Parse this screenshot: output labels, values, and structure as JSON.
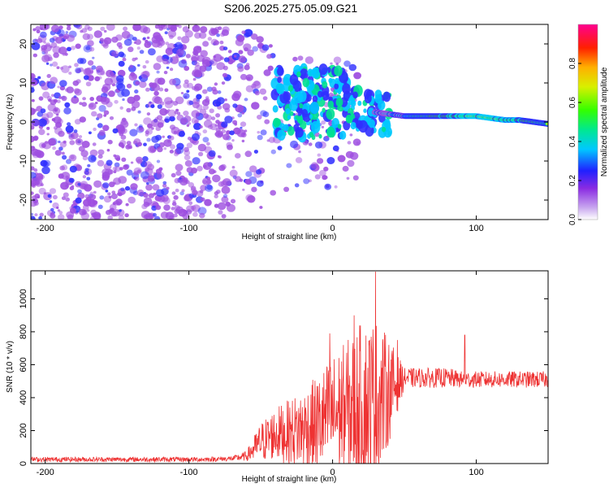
{
  "title": "S206.2025.275.05.09.G21",
  "chart_data": [
    {
      "type": "heatmap",
      "xlabel": "Height of straight line (km)",
      "ylabel": "Frequency (Hz)",
      "xlim": [
        -210,
        150
      ],
      "ylim": [
        -25,
        25
      ],
      "xticks": [
        -200,
        -100,
        0,
        100
      ],
      "xtick_labels": [
        "-200",
        "-100",
        "0",
        "100"
      ],
      "yticks": [
        -20,
        -10,
        0,
        10,
        20
      ],
      "ytick_labels": [
        "-20",
        "-10",
        "0",
        "10",
        "20"
      ],
      "ridge_x": [
        0,
        20,
        30,
        40,
        50,
        60,
        70,
        80,
        90,
        100,
        110,
        120,
        130,
        140,
        150
      ],
      "ridge_y": [
        5,
        3,
        2.5,
        2,
        1.5,
        1.5,
        1.5,
        1.5,
        1.5,
        1.5,
        1,
        0.5,
        0.5,
        0,
        -0.5
      ],
      "colorbar": {
        "label": "Normalized spectral amplitude",
        "range": [
          0,
          1
        ],
        "ticks": [
          0,
          0.2,
          0.4,
          0.6,
          0.8
        ],
        "tick_labels": [
          "0.0",
          "0.2",
          "0.4",
          "0.6",
          "0.8"
        ],
        "colors": [
          "#ffffff",
          "#9e4fe0",
          "#3030ff",
          "#00c8ff",
          "#00e090",
          "#33ff00",
          "#c8f000",
          "#ffd000",
          "#ff6000",
          "#ff0040",
          "#ff0080"
        ]
      }
    },
    {
      "type": "line",
      "xlabel": "Height of straight line (km)",
      "ylabel": "SNR (10 * v/v)",
      "xlim": [
        -210,
        150
      ],
      "ylim": [
        0,
        1170
      ],
      "xticks": [
        -200,
        -100,
        0,
        100
      ],
      "xtick_labels": [
        "-200",
        "-100",
        "0",
        "100"
      ],
      "yticks": [
        0,
        200,
        400,
        600,
        800,
        1000
      ],
      "ytick_labels": [
        "0",
        "200",
        "400",
        "600",
        "800",
        "1000"
      ],
      "series": [
        {
          "name": "SNR",
          "color": "#ee3333",
          "x": [
            -210,
            -180,
            -150,
            -120,
            -90,
            -70,
            -60,
            -50,
            -40,
            -30,
            -20,
            -10,
            0,
            10,
            20,
            30,
            40,
            50,
            60,
            70,
            80,
            90,
            100,
            110,
            120,
            130,
            140,
            150
          ],
          "y_base": [
            25,
            25,
            25,
            25,
            25,
            30,
            45,
            130,
            180,
            190,
            210,
            240,
            300,
            330,
            360,
            370,
            450,
            520,
            520,
            520,
            520,
            510,
            510,
            510,
            510,
            510,
            510,
            510
          ],
          "y_amp": [
            15,
            15,
            15,
            15,
            15,
            15,
            30,
            120,
            160,
            200,
            250,
            300,
            360,
            420,
            500,
            520,
            300,
            60,
            60,
            60,
            60,
            50,
            50,
            50,
            50,
            50,
            50,
            50
          ]
        }
      ],
      "peaks": [
        {
          "x": 30,
          "y": 1165
        },
        {
          "x": -2,
          "y": 790
        },
        {
          "x": 15,
          "y": 900
        },
        {
          "x": 45,
          "y": 750
        },
        {
          "x": 92,
          "y": 780
        }
      ]
    }
  ]
}
